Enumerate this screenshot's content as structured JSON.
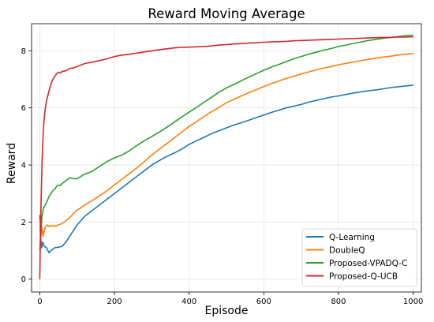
{
  "chart_data": {
    "type": "line",
    "title": "Reward Moving Average",
    "xlabel": "Episode",
    "ylabel": "Reward",
    "xlim": [
      -22,
      1022
    ],
    "ylim": [
      -0.45,
      8.95
    ],
    "xticks": [
      0,
      200,
      400,
      600,
      800,
      1000
    ],
    "yticks": [
      0,
      2,
      4,
      6,
      8
    ],
    "grid": true,
    "legend_position": "lower-right",
    "series": [
      {
        "name": "Q-Learning",
        "color": "#1f77b4",
        "points": [
          [
            0,
            2.25
          ],
          [
            2,
            1.5
          ],
          [
            5,
            1.1
          ],
          [
            8,
            1.3
          ],
          [
            12,
            1.15
          ],
          [
            18,
            1.1
          ],
          [
            25,
            0.92
          ],
          [
            30,
            1.0
          ],
          [
            35,
            1.05
          ],
          [
            40,
            1.1
          ],
          [
            50,
            1.12
          ],
          [
            60,
            1.15
          ],
          [
            70,
            1.3
          ],
          [
            80,
            1.5
          ],
          [
            90,
            1.7
          ],
          [
            100,
            1.9
          ],
          [
            110,
            2.05
          ],
          [
            120,
            2.2
          ],
          [
            140,
            2.4
          ],
          [
            160,
            2.6
          ],
          [
            180,
            2.8
          ],
          [
            200,
            3.0
          ],
          [
            220,
            3.2
          ],
          [
            240,
            3.4
          ],
          [
            260,
            3.6
          ],
          [
            280,
            3.8
          ],
          [
            300,
            4.0
          ],
          [
            320,
            4.15
          ],
          [
            340,
            4.3
          ],
          [
            360,
            4.42
          ],
          [
            380,
            4.55
          ],
          [
            400,
            4.72
          ],
          [
            420,
            4.85
          ],
          [
            440,
            4.97
          ],
          [
            460,
            5.1
          ],
          [
            480,
            5.2
          ],
          [
            500,
            5.3
          ],
          [
            520,
            5.4
          ],
          [
            540,
            5.48
          ],
          [
            560,
            5.57
          ],
          [
            580,
            5.66
          ],
          [
            600,
            5.75
          ],
          [
            620,
            5.84
          ],
          [
            640,
            5.92
          ],
          [
            660,
            6.0
          ],
          [
            680,
            6.06
          ],
          [
            700,
            6.12
          ],
          [
            720,
            6.2
          ],
          [
            740,
            6.26
          ],
          [
            760,
            6.32
          ],
          [
            780,
            6.38
          ],
          [
            800,
            6.42
          ],
          [
            820,
            6.47
          ],
          [
            840,
            6.52
          ],
          [
            860,
            6.56
          ],
          [
            880,
            6.6
          ],
          [
            900,
            6.63
          ],
          [
            920,
            6.67
          ],
          [
            940,
            6.71
          ],
          [
            960,
            6.74
          ],
          [
            980,
            6.77
          ],
          [
            1000,
            6.8
          ]
        ]
      },
      {
        "name": "DoubleQ",
        "color": "#ff7f0e",
        "points": [
          [
            0,
            2.1
          ],
          [
            3,
            1.5
          ],
          [
            6,
            1.8
          ],
          [
            9,
            1.5
          ],
          [
            12,
            1.7
          ],
          [
            15,
            1.82
          ],
          [
            20,
            1.9
          ],
          [
            25,
            1.85
          ],
          [
            30,
            1.88
          ],
          [
            40,
            1.85
          ],
          [
            50,
            1.9
          ],
          [
            60,
            1.95
          ],
          [
            70,
            2.05
          ],
          [
            80,
            2.15
          ],
          [
            90,
            2.3
          ],
          [
            100,
            2.42
          ],
          [
            110,
            2.5
          ],
          [
            120,
            2.6
          ],
          [
            140,
            2.75
          ],
          [
            160,
            2.92
          ],
          [
            180,
            3.1
          ],
          [
            200,
            3.3
          ],
          [
            220,
            3.5
          ],
          [
            240,
            3.7
          ],
          [
            260,
            3.9
          ],
          [
            280,
            4.12
          ],
          [
            300,
            4.35
          ],
          [
            320,
            4.55
          ],
          [
            340,
            4.75
          ],
          [
            360,
            4.95
          ],
          [
            380,
            5.15
          ],
          [
            400,
            5.35
          ],
          [
            420,
            5.52
          ],
          [
            440,
            5.7
          ],
          [
            460,
            5.87
          ],
          [
            480,
            6.02
          ],
          [
            500,
            6.18
          ],
          [
            520,
            6.3
          ],
          [
            540,
            6.42
          ],
          [
            560,
            6.53
          ],
          [
            580,
            6.64
          ],
          [
            600,
            6.75
          ],
          [
            620,
            6.85
          ],
          [
            640,
            6.94
          ],
          [
            660,
            7.03
          ],
          [
            680,
            7.11
          ],
          [
            700,
            7.19
          ],
          [
            720,
            7.26
          ],
          [
            740,
            7.33
          ],
          [
            760,
            7.39
          ],
          [
            780,
            7.45
          ],
          [
            800,
            7.51
          ],
          [
            820,
            7.56
          ],
          [
            840,
            7.61
          ],
          [
            860,
            7.65
          ],
          [
            880,
            7.7
          ],
          [
            900,
            7.74
          ],
          [
            920,
            7.78
          ],
          [
            940,
            7.81
          ],
          [
            960,
            7.85
          ],
          [
            980,
            7.88
          ],
          [
            1000,
            7.91
          ]
        ]
      },
      {
        "name": "Proposed-VPADQ-C",
        "color": "#2ca02c",
        "points": [
          [
            0,
            1.0
          ],
          [
            3,
            1.6
          ],
          [
            6,
            2.2
          ],
          [
            10,
            2.5
          ],
          [
            15,
            2.6
          ],
          [
            20,
            2.75
          ],
          [
            25,
            2.9
          ],
          [
            30,
            3.0
          ],
          [
            35,
            3.1
          ],
          [
            40,
            3.15
          ],
          [
            45,
            3.25
          ],
          [
            50,
            3.3
          ],
          [
            55,
            3.28
          ],
          [
            60,
            3.35
          ],
          [
            70,
            3.45
          ],
          [
            80,
            3.55
          ],
          [
            90,
            3.52
          ],
          [
            100,
            3.52
          ],
          [
            110,
            3.6
          ],
          [
            120,
            3.68
          ],
          [
            130,
            3.72
          ],
          [
            140,
            3.78
          ],
          [
            160,
            3.95
          ],
          [
            180,
            4.12
          ],
          [
            200,
            4.25
          ],
          [
            220,
            4.35
          ],
          [
            240,
            4.5
          ],
          [
            260,
            4.68
          ],
          [
            280,
            4.85
          ],
          [
            300,
            5.0
          ],
          [
            320,
            5.15
          ],
          [
            340,
            5.32
          ],
          [
            360,
            5.5
          ],
          [
            380,
            5.68
          ],
          [
            400,
            5.85
          ],
          [
            420,
            6.02
          ],
          [
            440,
            6.2
          ],
          [
            460,
            6.37
          ],
          [
            480,
            6.55
          ],
          [
            500,
            6.7
          ],
          [
            520,
            6.82
          ],
          [
            540,
            6.95
          ],
          [
            560,
            7.08
          ],
          [
            580,
            7.2
          ],
          [
            600,
            7.32
          ],
          [
            620,
            7.43
          ],
          [
            640,
            7.52
          ],
          [
            660,
            7.62
          ],
          [
            680,
            7.72
          ],
          [
            700,
            7.8
          ],
          [
            720,
            7.88
          ],
          [
            740,
            7.95
          ],
          [
            760,
            8.02
          ],
          [
            780,
            8.08
          ],
          [
            800,
            8.15
          ],
          [
            820,
            8.2
          ],
          [
            840,
            8.26
          ],
          [
            860,
            8.31
          ],
          [
            880,
            8.36
          ],
          [
            900,
            8.4
          ],
          [
            920,
            8.44
          ],
          [
            940,
            8.47
          ],
          [
            960,
            8.5
          ],
          [
            980,
            8.53
          ],
          [
            1000,
            8.55
          ]
        ]
      },
      {
        "name": "Proposed-Q-UCB",
        "color": "#d62728",
        "points": [
          [
            0,
            0.0
          ],
          [
            2,
            1.8
          ],
          [
            4,
            3.0
          ],
          [
            6,
            4.0
          ],
          [
            8,
            4.8
          ],
          [
            10,
            5.3
          ],
          [
            13,
            5.8
          ],
          [
            16,
            6.1
          ],
          [
            20,
            6.35
          ],
          [
            25,
            6.6
          ],
          [
            30,
            6.85
          ],
          [
            35,
            7.0
          ],
          [
            40,
            7.1
          ],
          [
            45,
            7.2
          ],
          [
            50,
            7.25
          ],
          [
            55,
            7.22
          ],
          [
            60,
            7.28
          ],
          [
            70,
            7.3
          ],
          [
            80,
            7.38
          ],
          [
            90,
            7.4
          ],
          [
            100,
            7.45
          ],
          [
            110,
            7.5
          ],
          [
            120,
            7.55
          ],
          [
            130,
            7.58
          ],
          [
            140,
            7.6
          ],
          [
            160,
            7.66
          ],
          [
            180,
            7.72
          ],
          [
            200,
            7.8
          ],
          [
            220,
            7.85
          ],
          [
            240,
            7.88
          ],
          [
            260,
            7.92
          ],
          [
            280,
            7.96
          ],
          [
            300,
            8.0
          ],
          [
            320,
            8.04
          ],
          [
            340,
            8.07
          ],
          [
            360,
            8.1
          ],
          [
            380,
            8.12
          ],
          [
            400,
            8.13
          ],
          [
            420,
            8.14
          ],
          [
            440,
            8.15
          ],
          [
            460,
            8.17
          ],
          [
            480,
            8.2
          ],
          [
            500,
            8.22
          ],
          [
            520,
            8.24
          ],
          [
            540,
            8.25
          ],
          [
            560,
            8.27
          ],
          [
            580,
            8.28
          ],
          [
            600,
            8.3
          ],
          [
            620,
            8.31
          ],
          [
            640,
            8.32
          ],
          [
            660,
            8.33
          ],
          [
            680,
            8.35
          ],
          [
            700,
            8.36
          ],
          [
            720,
            8.37
          ],
          [
            740,
            8.38
          ],
          [
            760,
            8.39
          ],
          [
            780,
            8.4
          ],
          [
            800,
            8.41
          ],
          [
            820,
            8.42
          ],
          [
            840,
            8.43
          ],
          [
            860,
            8.44
          ],
          [
            880,
            8.45
          ],
          [
            900,
            8.46
          ],
          [
            920,
            8.47
          ],
          [
            940,
            8.47
          ],
          [
            960,
            8.48
          ],
          [
            980,
            8.48
          ],
          [
            1000,
            8.49
          ]
        ]
      }
    ]
  }
}
